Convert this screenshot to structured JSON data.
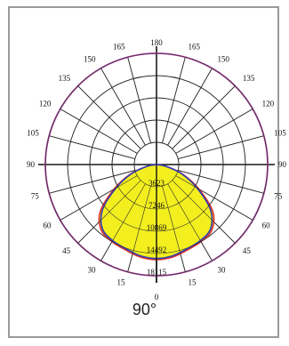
{
  "caption": "90°",
  "chart_data": {
    "type": "polar-line",
    "angle_ticks_left": [
      "0",
      "15",
      "30",
      "45",
      "60",
      "75",
      "90",
      "105",
      "120",
      "135",
      "150",
      "165",
      "180"
    ],
    "angle_ticks_right": [
      "15",
      "30",
      "45",
      "60",
      "75",
      "90",
      "105",
      "120",
      "135",
      "150",
      "165"
    ],
    "radial_ticks": [
      "3623",
      "7246",
      "10869",
      "14492",
      "18115"
    ],
    "r_max": 18115,
    "series": [
      {
        "color": "#e0332b",
        "angles": [
          0,
          10,
          20,
          30,
          40,
          50,
          60,
          70,
          80,
          90
        ],
        "values": [
          15500,
          15300,
          14800,
          14500,
          14000,
          12000,
          8000,
          4500,
          1500,
          0
        ]
      },
      {
        "color": "#2c3cb8",
        "angles": [
          0,
          10,
          20,
          30,
          40,
          50,
          60,
          70,
          80,
          90
        ],
        "values": [
          15300,
          15100,
          14600,
          14300,
          13700,
          11500,
          7600,
          4300,
          1500,
          0
        ]
      }
    ],
    "reference_circle": {
      "color": "#a8409c",
      "value": 18115
    },
    "fill_color": "#f3ef1f",
    "grid": true
  }
}
